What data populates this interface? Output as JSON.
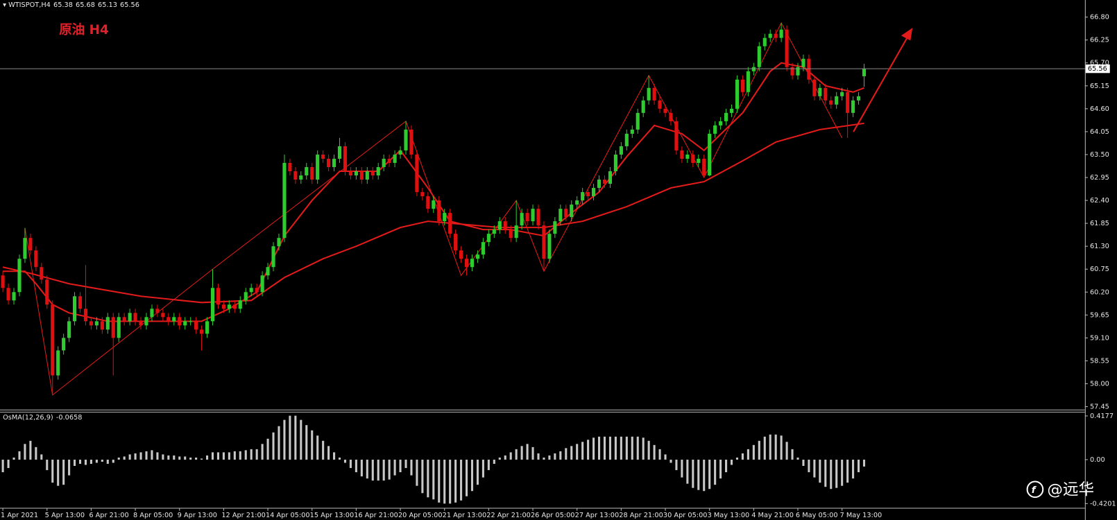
{
  "chart_data": {
    "type": "candlestick",
    "symbol": "WTISPOT,H4",
    "title": "原油 H4",
    "up_color": "#2ecc2e",
    "down_color": "#e01010",
    "open": [
      60.6,
      60.3,
      60.0,
      60.2,
      61.0,
      61.5,
      61.2,
      60.8,
      60.5,
      59.9,
      58.2,
      58.8,
      59.1,
      59.5,
      60.1,
      59.8,
      59.5,
      59.4,
      59.5,
      59.3,
      59.6,
      59.1,
      59.6,
      59.5,
      59.7,
      59.5,
      59.4,
      59.6,
      59.8,
      59.7,
      59.6,
      59.5,
      59.6,
      59.4,
      59.5,
      59.5,
      59.3,
      59.2,
      59.5,
      60.3,
      59.9,
      59.8,
      59.9,
      59.8,
      60.0,
      60.2,
      60.3,
      60.2,
      60.6,
      60.8,
      61.3,
      61.5,
      63.3,
      63.1,
      62.9,
      63.0,
      63.2,
      62.9,
      63.5,
      63.4,
      63.2,
      63.4,
      63.7,
      63.1,
      63.0,
      63.1,
      62.9,
      63.1,
      63.0,
      63.2,
      63.4,
      63.3,
      63.5,
      63.6,
      64.1,
      63.5,
      62.6,
      62.5,
      62.2,
      62.4,
      61.9,
      62.1,
      61.6,
      61.2,
      61.0,
      60.8,
      61.0,
      61.1,
      61.4,
      61.6,
      61.7,
      61.9,
      61.7,
      61.5,
      61.8,
      62.1,
      61.9,
      62.2,
      61.8,
      61.0,
      61.6,
      61.9,
      62.2,
      62.0,
      62.3,
      62.4,
      62.6,
      62.5,
      62.7,
      62.9,
      62.8,
      63.1,
      63.5,
      63.7,
      64.0,
      64.1,
      64.5,
      64.8,
      65.1,
      64.8,
      64.6,
      64.5,
      64.3,
      63.6,
      63.4,
      63.5,
      63.3,
      63.4,
      63.0,
      64.0,
      64.2,
      64.3,
      64.5,
      64.6,
      65.3,
      65.0,
      65.5,
      65.6,
      66.1,
      66.3,
      66.4,
      66.3,
      66.5,
      65.6,
      65.4,
      65.6,
      65.8,
      65.3,
      64.9,
      65.1,
      64.8,
      64.7,
      64.9,
      65.0,
      64.5,
      64.8,
      65.38
    ],
    "high": [
      60.7,
      60.4,
      60.3,
      61.1,
      61.74,
      61.6,
      61.3,
      60.9,
      60.6,
      60.0,
      58.9,
      59.2,
      59.6,
      60.2,
      60.2,
      60.85,
      59.6,
      59.6,
      59.6,
      59.7,
      59.7,
      59.7,
      59.7,
      59.8,
      59.8,
      59.6,
      59.7,
      59.9,
      59.9,
      59.8,
      59.7,
      59.7,
      59.7,
      59.6,
      59.6,
      59.6,
      59.4,
      59.6,
      60.75,
      60.4,
      60.0,
      60.0,
      60.0,
      60.1,
      60.3,
      60.4,
      60.4,
      60.7,
      60.9,
      61.4,
      61.6,
      63.5,
      63.4,
      63.2,
      63.1,
      63.3,
      63.3,
      63.6,
      63.6,
      63.5,
      63.5,
      63.9,
      63.8,
      63.2,
      63.2,
      63.2,
      63.2,
      63.2,
      63.3,
      63.5,
      63.5,
      63.6,
      63.7,
      64.3,
      64.2,
      63.6,
      62.7,
      62.6,
      62.5,
      62.5,
      62.2,
      62.2,
      61.7,
      61.3,
      61.1,
      61.1,
      61.2,
      61.5,
      61.7,
      61.8,
      62.0,
      62.0,
      61.8,
      62.4,
      62.2,
      62.2,
      62.3,
      62.3,
      61.9,
      61.7,
      62.0,
      62.3,
      62.3,
      62.4,
      62.5,
      62.7,
      62.7,
      62.8,
      63.0,
      63.0,
      63.2,
      63.6,
      63.8,
      64.1,
      64.2,
      64.6,
      64.9,
      65.4,
      65.2,
      64.9,
      64.7,
      64.6,
      64.4,
      63.7,
      63.6,
      63.6,
      63.5,
      63.5,
      64.1,
      64.3,
      64.4,
      64.6,
      64.7,
      65.4,
      65.4,
      65.6,
      65.7,
      66.2,
      66.4,
      66.5,
      66.5,
      66.66,
      66.6,
      65.7,
      65.7,
      65.9,
      65.9,
      65.4,
      65.2,
      65.2,
      64.9,
      65.0,
      65.1,
      65.1,
      64.9,
      65.0,
      65.68
    ],
    "low": [
      60.2,
      59.9,
      59.9,
      60.1,
      60.9,
      61.1,
      60.7,
      60.4,
      59.8,
      57.73,
      58.1,
      58.7,
      59.0,
      59.4,
      59.7,
      59.4,
      59.3,
      59.3,
      59.2,
      59.2,
      58.2,
      59.0,
      59.4,
      59.4,
      59.4,
      59.3,
      59.3,
      59.5,
      59.6,
      59.5,
      59.4,
      59.4,
      59.3,
      59.3,
      59.4,
      59.2,
      58.8,
      59.1,
      59.4,
      59.8,
      59.7,
      59.7,
      59.7,
      59.7,
      59.9,
      60.1,
      60.1,
      60.1,
      60.5,
      60.7,
      61.2,
      61.4,
      63.0,
      62.8,
      62.8,
      62.9,
      62.8,
      62.8,
      63.3,
      63.1,
      63.1,
      63.3,
      63.0,
      62.9,
      62.9,
      62.8,
      62.8,
      62.9,
      62.9,
      63.1,
      63.2,
      63.2,
      63.4,
      63.5,
      63.4,
      62.5,
      62.4,
      62.1,
      62.1,
      61.8,
      61.8,
      61.5,
      61.1,
      60.9,
      60.6,
      60.7,
      60.9,
      61.0,
      61.3,
      61.5,
      61.6,
      61.6,
      61.4,
      61.4,
      61.7,
      61.8,
      61.8,
      61.7,
      60.7,
      60.9,
      61.5,
      61.8,
      61.9,
      61.9,
      62.2,
      62.3,
      62.4,
      62.4,
      62.6,
      62.7,
      62.7,
      63.0,
      63.4,
      63.6,
      63.9,
      64.0,
      64.4,
      64.7,
      64.7,
      64.5,
      64.4,
      64.2,
      63.5,
      63.3,
      63.3,
      63.2,
      63.2,
      62.95,
      62.98,
      63.9,
      64.1,
      64.2,
      64.4,
      64.5,
      64.9,
      64.9,
      65.4,
      65.5,
      66.0,
      66.2,
      66.2,
      66.2,
      65.5,
      65.3,
      65.3,
      65.5,
      65.2,
      64.8,
      64.8,
      64.7,
      64.6,
      64.6,
      64.8,
      63.9,
      64.4,
      64.7,
      65.13
    ],
    "close": [
      60.3,
      60.0,
      60.2,
      61.0,
      61.5,
      61.2,
      60.8,
      60.5,
      59.9,
      58.2,
      58.8,
      59.1,
      59.5,
      60.1,
      59.8,
      59.5,
      59.4,
      59.5,
      59.3,
      59.6,
      59.1,
      59.6,
      59.5,
      59.7,
      59.5,
      59.4,
      59.6,
      59.8,
      59.7,
      59.6,
      59.5,
      59.6,
      59.4,
      59.5,
      59.5,
      59.3,
      59.2,
      59.5,
      60.3,
      59.9,
      59.8,
      59.9,
      59.8,
      60.0,
      60.2,
      60.3,
      60.2,
      60.6,
      60.8,
      61.3,
      61.5,
      63.3,
      63.1,
      62.9,
      63.0,
      63.2,
      62.9,
      63.5,
      63.4,
      63.2,
      63.4,
      63.7,
      63.1,
      63.0,
      63.1,
      62.9,
      63.1,
      63.0,
      63.2,
      63.4,
      63.3,
      63.5,
      63.6,
      64.1,
      63.5,
      62.6,
      62.5,
      62.2,
      62.4,
      61.9,
      62.1,
      61.6,
      61.2,
      61.0,
      60.8,
      61.0,
      61.1,
      61.4,
      61.6,
      61.7,
      61.9,
      61.7,
      61.5,
      61.8,
      62.1,
      61.9,
      62.2,
      61.8,
      61.0,
      61.6,
      61.9,
      62.2,
      62.0,
      62.3,
      62.4,
      62.6,
      62.5,
      62.7,
      62.9,
      62.8,
      63.1,
      63.5,
      63.7,
      64.0,
      64.1,
      64.5,
      64.8,
      65.1,
      64.8,
      64.6,
      64.5,
      64.3,
      63.6,
      63.4,
      63.5,
      63.3,
      63.4,
      63.0,
      64.0,
      64.2,
      64.3,
      64.5,
      64.6,
      65.3,
      65.0,
      65.5,
      65.6,
      66.1,
      66.3,
      66.4,
      66.3,
      66.5,
      65.6,
      65.4,
      65.6,
      65.8,
      65.3,
      64.9,
      65.1,
      64.8,
      64.7,
      64.9,
      65.0,
      64.5,
      64.8,
      64.9,
      65.56
    ],
    "ylim": [
      57.38,
      67.21
    ],
    "yticks": [
      {
        "value": 66.8,
        "label": "66.80"
      },
      66.25,
      {
        "value": 65.7,
        "label": "65.70"
      },
      65.15,
      {
        "value": 64.6,
        "label": "64.60"
      },
      64.05,
      {
        "value": 63.5,
        "label": "63.50"
      },
      62.95,
      {
        "value": 62.4,
        "label": "62.40"
      },
      61.85,
      {
        "value": 61.3,
        "label": "61.30"
      },
      60.75,
      {
        "value": 60.2,
        "label": "60.20"
      },
      59.65,
      {
        "value": 59.1,
        "label": "59.10"
      },
      58.55,
      {
        "value": 58,
        "label": "58.00"
      },
      57.45
    ],
    "x_labels": [
      "1 Apr 2021",
      "5 Apr 13:00",
      "6 Apr 21:00",
      "8 Apr 05:00",
      "9 Apr 13:00",
      "12 Apr 21:00",
      "14 Apr 05:00",
      "15 Apr 13:00",
      "16 Apr 21:00",
      "20 Apr 05:00",
      "21 Apr 13:00",
      "22 Apr 21:00",
      "26 Apr 05:00",
      "27 Apr 13:00",
      "28 Apr 21:00",
      "30 Apr 05:00",
      "3 May 13:00",
      "4 May 21:00",
      "6 May 05:00",
      "7 May 13:00"
    ],
    "lines": [
      {
        "color": "#e41b1b",
        "x": [
          0,
          5,
          12,
          25,
          36,
          45,
          51,
          58,
          64,
          72,
          77,
          90,
          98,
          105,
          113,
          121,
          127,
          134,
          140,
          148,
          156
        ],
        "values": [
          60.8,
          60.65,
          60.4,
          60.1,
          59.95,
          60.0,
          60.55,
          61.0,
          61.3,
          61.75,
          61.9,
          61.75,
          61.75,
          61.9,
          62.25,
          62.7,
          62.85,
          63.35,
          63.8,
          64.1,
          64.25
        ]
      },
      {
        "color": "#e41b1b",
        "x": [
          0,
          4,
          6,
          9,
          12,
          19,
          25,
          36,
          41,
          46,
          51,
          56,
          61,
          68,
          72,
          77,
          81,
          87,
          92,
          98,
          103,
          108,
          113,
          118,
          123,
          127,
          134,
          139,
          141,
          145,
          149,
          154,
          156
        ],
        "values": [
          60.7,
          60.7,
          60.4,
          59.9,
          59.7,
          59.5,
          59.5,
          59.5,
          59.8,
          60.2,
          61.55,
          62.4,
          63.1,
          63.1,
          63.6,
          62.7,
          61.9,
          61.7,
          61.7,
          61.55,
          62.1,
          62.6,
          63.45,
          64.2,
          64.0,
          63.6,
          64.5,
          65.5,
          65.7,
          65.6,
          65.15,
          65.0,
          65.1
        ]
      }
    ],
    "zigzag": {
      "color": "#e41b1b",
      "x": [
        4,
        9,
        38,
        73,
        83,
        93,
        98,
        117,
        127,
        141,
        152
      ],
      "values": [
        61.74,
        57.73,
        60.75,
        64.3,
        60.6,
        62.4,
        60.7,
        65.4,
        62.95,
        66.66,
        63.9
      ]
    },
    "oscillator": {
      "name": "OsMA(12,26,9)",
      "color": "#c8c8c8",
      "ylim": [
        -0.461,
        0.458
      ],
      "yticks": [
        0.4177,
        {
          "value": 0,
          "label": "0.00"
        },
        -0.4201
      ],
      "values": [
        -0.12,
        -0.08,
        0.02,
        0.08,
        0.15,
        0.18,
        0.12,
        0.05,
        -0.1,
        -0.22,
        -0.25,
        -0.24,
        -0.15,
        -0.06,
        -0.04,
        -0.05,
        -0.04,
        -0.03,
        -0.02,
        -0.04,
        -0.03,
        0.02,
        0.03,
        0.05,
        0.06,
        0.07,
        0.08,
        0.09,
        0.07,
        0.05,
        0.04,
        0.04,
        0.03,
        0.03,
        0.02,
        0.02,
        0.01,
        0.04,
        0.07,
        0.07,
        0.07,
        0.07,
        0.08,
        0.08,
        0.09,
        0.1,
        0.1,
        0.15,
        0.2,
        0.26,
        0.32,
        0.38,
        0.42,
        0.42,
        0.38,
        0.33,
        0.28,
        0.23,
        0.18,
        0.13,
        0.07,
        0.02,
        -0.03,
        -0.08,
        -0.12,
        -0.16,
        -0.18,
        -0.2,
        -0.2,
        -0.2,
        -0.19,
        -0.15,
        -0.12,
        -0.08,
        -0.15,
        -0.25,
        -0.32,
        -0.36,
        -0.38,
        -0.41,
        -0.42,
        -0.42,
        -0.41,
        -0.39,
        -0.35,
        -0.3,
        -0.24,
        -0.17,
        -0.1,
        -0.04,
        0.02,
        0.04,
        0.07,
        0.1,
        0.13,
        0.15,
        0.12,
        0.06,
        0.02,
        0.04,
        0.06,
        0.08,
        0.11,
        0.13,
        0.15,
        0.17,
        0.19,
        0.21,
        0.22,
        0.22,
        0.22,
        0.22,
        0.22,
        0.22,
        0.22,
        0.22,
        0.21,
        0.18,
        0.14,
        0.1,
        0.05,
        -0.03,
        -0.1,
        -0.17,
        -0.23,
        -0.27,
        -0.29,
        -0.3,
        -0.28,
        -0.24,
        -0.18,
        -0.12,
        -0.05,
        0.02,
        0.06,
        0.1,
        0.14,
        0.18,
        0.22,
        0.24,
        0.24,
        0.23,
        0.17,
        0.1,
        0.02,
        -0.06,
        -0.12,
        -0.17,
        -0.22,
        -0.26,
        -0.28,
        -0.27,
        -0.25,
        -0.22,
        -0.18,
        -0.12,
        -0.0658
      ]
    }
  },
  "watermark": "@远华"
}
